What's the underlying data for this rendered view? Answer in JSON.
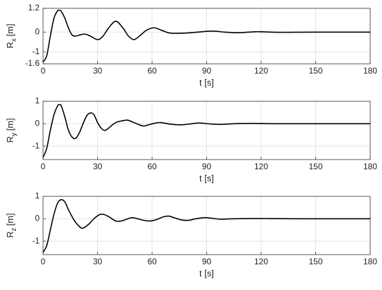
{
  "chart_data": [
    {
      "type": "line",
      "ylabel": "R",
      "ylabel_sub": "x",
      "ylabel_unit": "[m]",
      "xlabel": "t [s]",
      "color": "#000000",
      "grid": true,
      "xlim": [
        0,
        180
      ],
      "xticks": [
        0,
        30,
        60,
        90,
        120,
        150,
        180
      ],
      "ylim": [
        -1.6,
        1.2
      ],
      "yticks": [
        -1.6,
        -1,
        0,
        1.2
      ],
      "x": [
        0,
        2,
        4,
        6,
        8,
        9,
        10,
        12,
        14,
        16,
        18,
        20,
        23,
        26,
        30,
        33,
        36,
        40,
        44,
        47,
        50,
        53,
        57,
        61,
        65,
        70,
        78,
        85,
        93,
        100,
        108,
        118,
        130,
        150,
        180
      ],
      "values": [
        -1.5,
        -1.2,
        -0.2,
        0.7,
        1.08,
        1.1,
        1.05,
        0.7,
        0.2,
        -0.15,
        -0.2,
        -0.15,
        -0.1,
        -0.2,
        -0.38,
        -0.2,
        0.2,
        0.55,
        0.2,
        -0.2,
        -0.38,
        -0.2,
        0.1,
        0.22,
        0.1,
        -0.05,
        -0.05,
        0,
        0.05,
        0,
        -0.03,
        0.02,
        -0.01,
        0,
        0
      ]
    },
    {
      "type": "line",
      "ylabel": "R",
      "ylabel_sub": "y",
      "ylabel_unit": "[m]",
      "xlabel": "t [s]",
      "color": "#000000",
      "grid": true,
      "xlim": [
        0,
        180
      ],
      "xticks": [
        0,
        30,
        60,
        90,
        120,
        150,
        180
      ],
      "ylim": [
        -1.6,
        1
      ],
      "yticks": [
        -1,
        0,
        1
      ],
      "x": [
        0,
        2,
        4,
        6,
        8,
        9,
        10,
        12,
        14,
        16,
        18,
        20,
        22,
        24,
        26,
        28,
        30,
        32,
        34,
        36,
        40,
        45,
        47,
        50,
        55,
        58,
        62,
        65,
        70,
        76,
        82,
        86,
        92,
        98,
        105,
        115,
        130,
        180
      ],
      "values": [
        -1.5,
        -1.1,
        -0.3,
        0.4,
        0.8,
        0.85,
        0.8,
        0.3,
        -0.3,
        -0.6,
        -0.65,
        -0.4,
        0,
        0.35,
        0.48,
        0.4,
        0.05,
        -0.2,
        -0.3,
        -0.2,
        0.05,
        0.15,
        0.15,
        0.05,
        -0.1,
        -0.05,
        0.03,
        0.05,
        -0.02,
        -0.05,
        0,
        0.03,
        -0.01,
        -0.03,
        0,
        0.01,
        0,
        0
      ]
    },
    {
      "type": "line",
      "ylabel": "R",
      "ylabel_sub": "z",
      "ylabel_unit": "[m]",
      "xlabel": "t [s]",
      "color": "#000000",
      "grid": true,
      "xlim": [
        0,
        180
      ],
      "xticks": [
        0,
        30,
        60,
        90,
        120,
        150,
        180
      ],
      "ylim": [
        -1.6,
        1
      ],
      "yticks": [
        -1,
        0,
        1
      ],
      "x": [
        0,
        2,
        4,
        6,
        8,
        10,
        12,
        14,
        17,
        20,
        22,
        25,
        28,
        31,
        33,
        36,
        40,
        43,
        46,
        49,
        52,
        56,
        59,
        62,
        66,
        69,
        72,
        76,
        80,
        84,
        89,
        93,
        98,
        105,
        120,
        140,
        180
      ],
      "values": [
        -1.5,
        -1.2,
        -0.5,
        0.2,
        0.7,
        0.85,
        0.75,
        0.4,
        -0.05,
        -0.35,
        -0.42,
        -0.25,
        0,
        0.18,
        0.2,
        0.1,
        -0.1,
        -0.1,
        -0.02,
        0.05,
        0,
        -0.08,
        -0.1,
        -0.05,
        0.08,
        0.12,
        0.05,
        -0.05,
        -0.07,
        0,
        0.05,
        0.02,
        -0.02,
        0,
        0.01,
        0,
        0
      ]
    }
  ]
}
